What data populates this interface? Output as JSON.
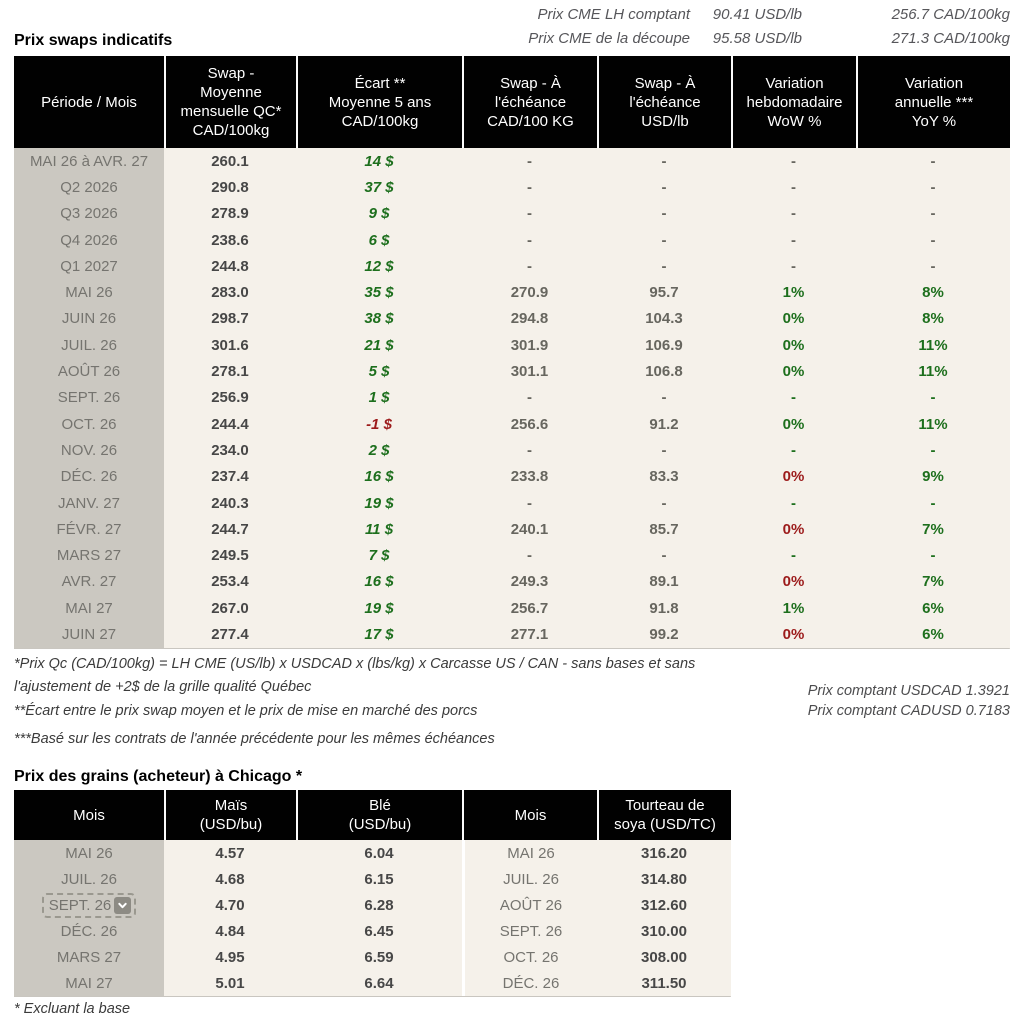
{
  "top": {
    "title": "Prix swaps indicatifs",
    "rows": [
      {
        "label": "Prix CME LH comptant",
        "usd": "90.41 USD/lb",
        "cad": "256.7 CAD/100kg"
      },
      {
        "label": "Prix CME de la découpe",
        "usd": "95.58 USD/lb",
        "cad": "271.3 CAD/100kg"
      }
    ]
  },
  "colors": {
    "positive_green": "#1d6f1d",
    "negative_red": "#9c1b1b",
    "header_bg": "#000000",
    "period_column_bg": "#cbc8c1",
    "data_bg": "#f5f1ea"
  },
  "swap_table": {
    "headers": [
      "Période / Mois",
      "Swap -\nMoyenne\nmensuelle QC*\nCAD/100kg",
      "Écart **\nMoyenne 5 ans\nCAD/100kg",
      "Swap - À\nl'échéance\nCAD/100 KG",
      "Swap - À\nl'échéance\nUSD/lb",
      "Variation\nhebdomadaire\nWoW %",
      "Variation\nannuelle ***\nYoY %"
    ],
    "rows": [
      {
        "p": "MAI 26 à  AVR. 27",
        "s": "260.1",
        "e": "14 $",
        "ec": "green",
        "c": "-",
        "u": "-",
        "w": "-",
        "wc": "gray",
        "y": "-",
        "yc": "gray"
      },
      {
        "p": "Q2 2026",
        "s": "290.8",
        "e": "37 $",
        "ec": "green",
        "c": "-",
        "u": "-",
        "w": "-",
        "wc": "gray",
        "y": "-",
        "yc": "gray"
      },
      {
        "p": "Q3 2026",
        "s": "278.9",
        "e": "9 $",
        "ec": "green",
        "c": "-",
        "u": "-",
        "w": "-",
        "wc": "gray",
        "y": "-",
        "yc": "gray"
      },
      {
        "p": "Q4 2026",
        "s": "238.6",
        "e": "6 $",
        "ec": "green",
        "c": "-",
        "u": "-",
        "w": "-",
        "wc": "gray",
        "y": "-",
        "yc": "gray"
      },
      {
        "p": "Q1 2027",
        "s": "244.8",
        "e": "12 $",
        "ec": "green",
        "c": "-",
        "u": "-",
        "w": "-",
        "wc": "gray",
        "y": "-",
        "yc": "gray"
      },
      {
        "p": "MAI 26",
        "s": "283.0",
        "e": "35 $",
        "ec": "green",
        "c": "270.9",
        "u": "95.7",
        "w": "1%",
        "wc": "green",
        "y": "8%",
        "yc": "green"
      },
      {
        "p": "JUIN 26",
        "s": "298.7",
        "e": "38 $",
        "ec": "green",
        "c": "294.8",
        "u": "104.3",
        "w": "0%",
        "wc": "green",
        "y": "8%",
        "yc": "green"
      },
      {
        "p": "JUIL. 26",
        "s": "301.6",
        "e": "21 $",
        "ec": "green",
        "c": "301.9",
        "u": "106.9",
        "w": "0%",
        "wc": "green",
        "y": "11%",
        "yc": "green"
      },
      {
        "p": "AOÛT 26",
        "s": "278.1",
        "e": "5 $",
        "ec": "green",
        "c": "301.1",
        "u": "106.8",
        "w": "0%",
        "wc": "green",
        "y": "11%",
        "yc": "green"
      },
      {
        "p": "SEPT. 26",
        "s": "256.9",
        "e": "1 $",
        "ec": "green",
        "c": "-",
        "u": "-",
        "w": "-",
        "wc": "green",
        "y": "-",
        "yc": "green"
      },
      {
        "p": "OCT. 26",
        "s": "244.4",
        "e": "-1 $",
        "ec": "red",
        "c": "256.6",
        "u": "91.2",
        "w": "0%",
        "wc": "green",
        "y": "11%",
        "yc": "green"
      },
      {
        "p": "NOV. 26",
        "s": "234.0",
        "e": "2 $",
        "ec": "green",
        "c": "-",
        "u": "-",
        "w": "-",
        "wc": "green",
        "y": "-",
        "yc": "green"
      },
      {
        "p": "DÉC. 26",
        "s": "237.4",
        "e": "16 $",
        "ec": "green",
        "c": "233.8",
        "u": "83.3",
        "w": "0%",
        "wc": "red",
        "y": "9%",
        "yc": "green"
      },
      {
        "p": "JANV. 27",
        "s": "240.3",
        "e": "19 $",
        "ec": "green",
        "c": "-",
        "u": "-",
        "w": "-",
        "wc": "green",
        "y": "-",
        "yc": "green"
      },
      {
        "p": "FÉVR. 27",
        "s": "244.7",
        "e": "11 $",
        "ec": "green",
        "c": "240.1",
        "u": "85.7",
        "w": "0%",
        "wc": "red",
        "y": "7%",
        "yc": "green"
      },
      {
        "p": "MARS 27",
        "s": "249.5",
        "e": "7 $",
        "ec": "green",
        "c": "-",
        "u": "-",
        "w": "-",
        "wc": "green",
        "y": "-",
        "yc": "green"
      },
      {
        "p": "AVR. 27",
        "s": "253.4",
        "e": "16 $",
        "ec": "green",
        "c": "249.3",
        "u": "89.1",
        "w": "0%",
        "wc": "red",
        "y": "7%",
        "yc": "green"
      },
      {
        "p": "MAI 27",
        "s": "267.0",
        "e": "19 $",
        "ec": "green",
        "c": "256.7",
        "u": "91.8",
        "w": "1%",
        "wc": "green",
        "y": "6%",
        "yc": "green"
      },
      {
        "p": "JUIN 27",
        "s": "277.4",
        "e": "17 $",
        "ec": "green",
        "c": "277.1",
        "u": "99.2",
        "w": "0%",
        "wc": "red",
        "y": "6%",
        "yc": "green"
      }
    ]
  },
  "footnotes": {
    "note1": "*Prix Qc (CAD/100kg) = LH CME (US/lb) x USDCAD x (lbs/kg) x Carcasse US / CAN - sans bases et sans l'ajustement de +2$ de la grille qualité Québec",
    "note2": "**Écart entre le prix swap moyen et le prix de mise en marché des porcs",
    "note3": "***Basé sur les contrats de l'année précédente pour les mêmes échéances",
    "fx1": "Prix comptant USDCAD 1.3921",
    "fx2": "Prix comptant CADUSD 0.7183"
  },
  "grain_table": {
    "title": "Prix des grains (acheteur) à Chicago *",
    "headers": [
      "Mois",
      "Maïs\n(USD/bu)",
      "Blé\n(USD/bu)",
      "Mois",
      "Tourteau de\nsoya (USD/TC)"
    ],
    "rows": [
      {
        "ml": "MAI 26",
        "corn": "4.57",
        "wheat": "6.04",
        "mr": "MAI 26",
        "soy": "316.20",
        "dd": false
      },
      {
        "ml": "JUIL. 26",
        "corn": "4.68",
        "wheat": "6.15",
        "mr": "JUIL. 26",
        "soy": "314.80",
        "dd": false
      },
      {
        "ml": "SEPT. 26",
        "corn": "4.70",
        "wheat": "6.28",
        "mr": "AOÛT 26",
        "soy": "312.60",
        "dd": true
      },
      {
        "ml": "DÉC. 26",
        "corn": "4.84",
        "wheat": "6.45",
        "mr": "SEPT. 26",
        "soy": "310.00",
        "dd": false
      },
      {
        "ml": "MARS 27",
        "corn": "4.95",
        "wheat": "6.59",
        "mr": "OCT. 26",
        "soy": "308.00",
        "dd": false
      },
      {
        "ml": "MAI 27",
        "corn": "5.01",
        "wheat": "6.64",
        "mr": "DÉC. 26",
        "soy": "311.50",
        "dd": false
      }
    ],
    "footnote": "* Excluant la base"
  }
}
